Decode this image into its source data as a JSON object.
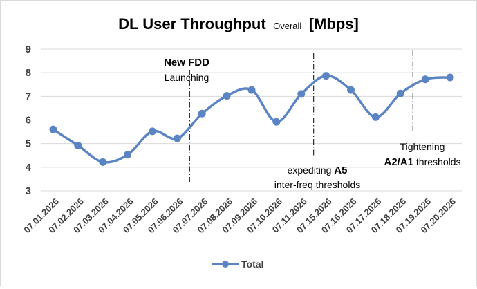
{
  "chart_data": {
    "type": "line",
    "title": {
      "main": "DL User Throughput",
      "qualifier": "Overall",
      "unit": "[Mbps]"
    },
    "categories": [
      "07.01.2026",
      "07.02.2026",
      "07.03.2026",
      "07.04.2026",
      "07.05.2026",
      "07.06.2026",
      "07.07.2026",
      "07.08.2026",
      "07.09.2026",
      "07.10.2026",
      "07.11.2026",
      "07.15.2026",
      "07.16.2026",
      "07.17.2026",
      "07.18.2026",
      "07.19.2026",
      "07.20.2026"
    ],
    "series": [
      {
        "name": "Total",
        "color": "#5b84c4",
        "values": [
          5.6,
          4.92,
          4.22,
          4.53,
          5.52,
          5.22,
          6.27,
          7.02,
          7.27,
          5.92,
          7.1,
          7.87,
          7.27,
          6.12,
          7.12,
          7.72,
          7.8
        ]
      }
    ],
    "ylim": [
      3,
      9
    ],
    "yticks": [
      3,
      4,
      5,
      6,
      7,
      8,
      9
    ],
    "grid": true,
    "legend_position": "bottom",
    "annotations": [
      {
        "marker_after_index": 5,
        "title": "New FDD",
        "subtitle": "Launching"
      },
      {
        "marker_after_index": 10,
        "line1_prefix": "expediting ",
        "line1_bold": "A5",
        "line2": "inter-freq thresholds"
      },
      {
        "marker_after_index": 14,
        "line1": "Tightening",
        "line2_bold": "A2/A1",
        "line2_suffix": " thresholds"
      }
    ]
  }
}
